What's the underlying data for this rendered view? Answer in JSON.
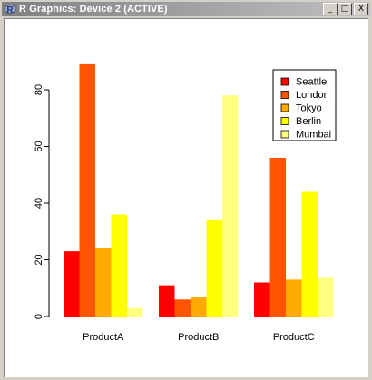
{
  "window": {
    "title": "R Graphics: Device 2 (ACTIVE)",
    "buttons": {
      "minimize": "_",
      "maximize": "□",
      "close": "X"
    }
  },
  "chart_data": {
    "type": "bar",
    "categories": [
      "ProductA",
      "ProductB",
      "ProductC"
    ],
    "series": [
      {
        "name": "Seattle",
        "color": "#ff0000",
        "values": [
          23,
          11,
          12
        ]
      },
      {
        "name": "London",
        "color": "#ff5500",
        "values": [
          89,
          6,
          56
        ]
      },
      {
        "name": "Tokyo",
        "color": "#ffaa00",
        "values": [
          24,
          7,
          13
        ]
      },
      {
        "name": "Berlin",
        "color": "#ffff00",
        "values": [
          36,
          34,
          44
        ]
      },
      {
        "name": "Mumbai",
        "color": "#ffff80",
        "values": [
          3,
          78,
          14
        ]
      }
    ],
    "yticks": [
      0,
      20,
      40,
      60,
      80
    ],
    "ylim": [
      0,
      91
    ],
    "title": "",
    "xlabel": "",
    "ylabel": "",
    "legend_position": "top-right",
    "grid": false
  }
}
